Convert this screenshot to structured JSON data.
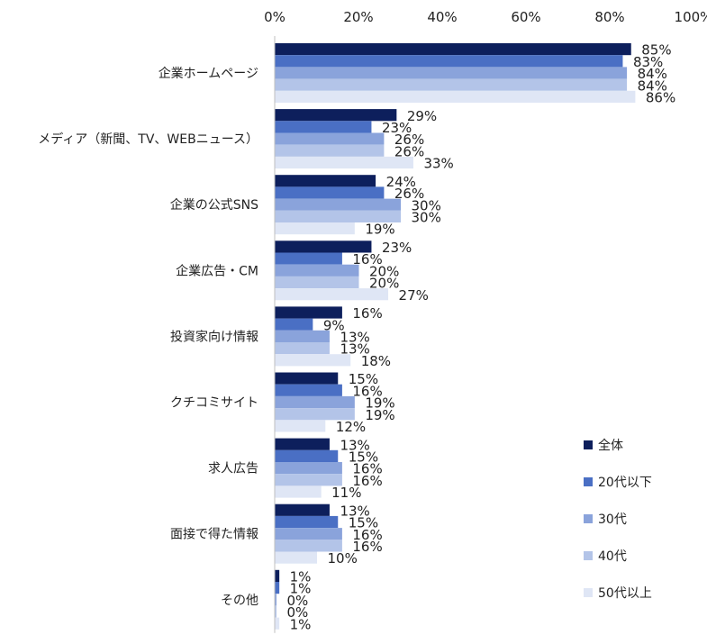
{
  "chart_data": {
    "type": "bar",
    "orientation": "horizontal",
    "title": "",
    "xlim": [
      0,
      100
    ],
    "x_ticks": [
      "0%",
      "20%",
      "40%",
      "60%",
      "80%",
      "100%"
    ],
    "grid": false,
    "legend_position": "bottom-right",
    "categories": [
      "企業ホームページ",
      "メディア（新聞、TV、WEBニュース）",
      "企業の公式SNS",
      "企業広告・CM",
      "投資家向け情報",
      "クチコミサイト",
      "求人広告",
      "面接で得た情報",
      "その他"
    ],
    "series": [
      {
        "name": "全体",
        "color": "#0d1f5c",
        "values": [
          85,
          29,
          24,
          23,
          16,
          15,
          13,
          13,
          1
        ],
        "labels": [
          "85%",
          "29%",
          "24%",
          "23%",
          "16%",
          "15%",
          "13%",
          "13%",
          "1%"
        ]
      },
      {
        "name": "20代以下",
        "color": "#4a6fc4",
        "values": [
          83,
          23,
          26,
          16,
          9,
          16,
          15,
          15,
          1
        ],
        "labels": [
          "83%",
          "23%",
          "26%",
          "16%",
          "9%",
          "16%",
          "15%",
          "15%",
          "1%"
        ]
      },
      {
        "name": "30代",
        "color": "#8aa3db",
        "values": [
          84,
          26,
          30,
          20,
          13,
          19,
          16,
          16,
          0
        ],
        "labels": [
          "84%",
          "26%",
          "30%",
          "20%",
          "13%",
          "19%",
          "16%",
          "16%",
          "0%"
        ]
      },
      {
        "name": "40代",
        "color": "#b3c4e8",
        "values": [
          84,
          26,
          30,
          20,
          13,
          19,
          16,
          16,
          0
        ],
        "labels": [
          "84%",
          "26%",
          "30%",
          "20%",
          "13%",
          "19%",
          "16%",
          "16%",
          "0%"
        ]
      },
      {
        "name": "50代以上",
        "color": "#dfe6f5",
        "values": [
          86,
          33,
          19,
          27,
          18,
          12,
          11,
          10,
          1
        ],
        "labels": [
          "86%",
          "33%",
          "19%",
          "27%",
          "18%",
          "12%",
          "11%",
          "10%",
          "1%"
        ]
      }
    ]
  }
}
